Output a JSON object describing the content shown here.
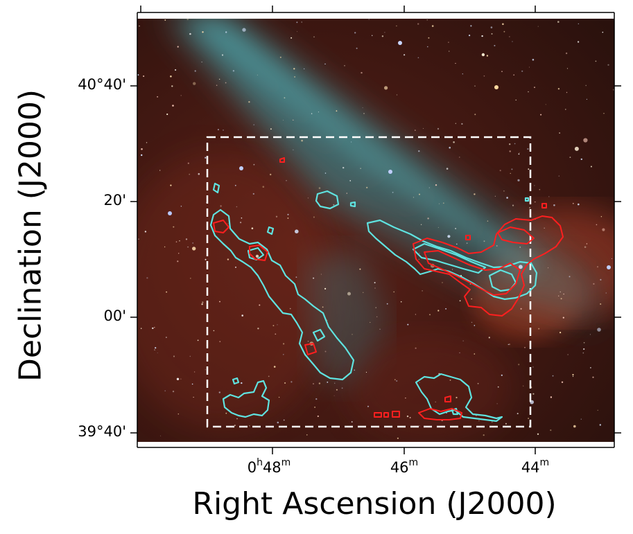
{
  "axes": {
    "x_title": "Right Ascension (J2000)",
    "y_title": "Declination (J2000)",
    "x_ticks": [
      {
        "h": "0",
        "h_unit": "h",
        "m": "48",
        "m_unit": "m"
      },
      {
        "h": "",
        "h_unit": "",
        "m": "46",
        "m_unit": "m"
      },
      {
        "h": "",
        "h_unit": "",
        "m": "44",
        "m_unit": "m"
      }
    ],
    "y_ticks": [
      "40°40'",
      "20'",
      "00'",
      "39°40'"
    ]
  },
  "image": {
    "subject": "false-color sky image with diffuse blue-green band, red nebulosity and star field",
    "colors": {
      "background": "#3a1410",
      "band": "#3f8c95",
      "contour_cyan": "#5fe3e0",
      "contour_red": "#ff1a1a",
      "box": "#ffffff"
    }
  }
}
